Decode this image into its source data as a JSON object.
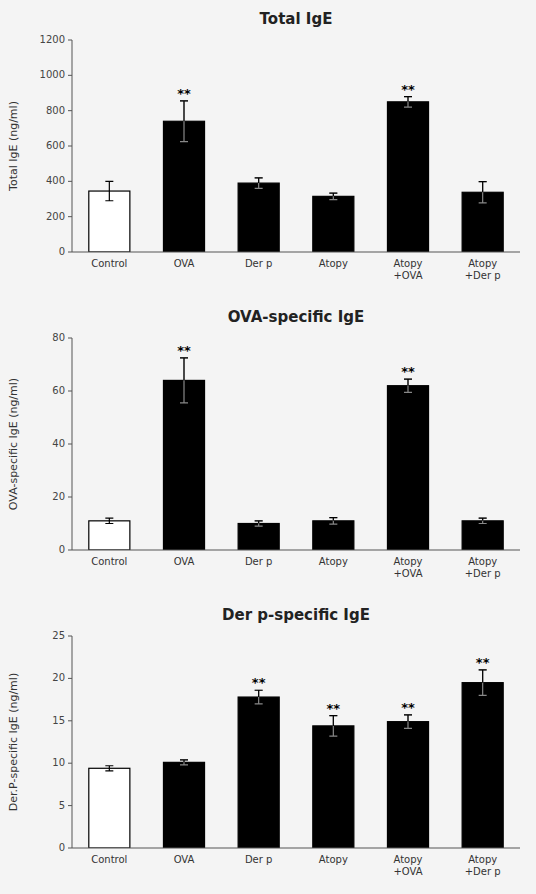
{
  "chart_data": [
    {
      "type": "bar",
      "title": "Total IgE",
      "ylabel": "Total IgE (ng/ml)",
      "categories": [
        "Control",
        "OVA",
        "Der p",
        "Atopy",
        "Atopy\n+OVA",
        "Atopy\n+Der p"
      ],
      "values": [
        345,
        740,
        390,
        315,
        850,
        338
      ],
      "errors": [
        55,
        115,
        30,
        18,
        30,
        60
      ],
      "colors": [
        "white",
        "black",
        "black",
        "black",
        "black",
        "black"
      ],
      "annotations": [
        {
          "category": "OVA",
          "text": "**"
        },
        {
          "category": "Atopy\n+OVA",
          "text": "**"
        }
      ],
      "ylim": [
        0,
        1200
      ],
      "yticks": [
        0,
        200,
        400,
        600,
        800,
        1000,
        1200
      ],
      "grid": false
    },
    {
      "type": "bar",
      "title": "OVA-specific IgE",
      "ylabel": "OVA-specific IgE (ng/ml)",
      "categories": [
        "Control",
        "OVA",
        "Der p",
        "Atopy",
        "Atopy\n+OVA",
        "Atopy\n+Der p"
      ],
      "values": [
        11,
        64,
        10,
        11,
        62,
        11
      ],
      "errors": [
        1.0,
        8.5,
        1.0,
        1.2,
        2.5,
        1.0
      ],
      "colors": [
        "white",
        "black",
        "black",
        "black",
        "black",
        "black"
      ],
      "annotations": [
        {
          "category": "OVA",
          "text": "**"
        },
        {
          "category": "Atopy\n+OVA",
          "text": "**"
        }
      ],
      "ylim": [
        0,
        80
      ],
      "yticks": [
        0,
        20,
        40,
        60,
        80
      ],
      "grid": false
    },
    {
      "type": "bar",
      "title": "Der p-specific IgE",
      "ylabel": "Der.P-specific IgE (ng/ml)",
      "categories": [
        "Control",
        "OVA",
        "Der p",
        "Atopy",
        "Atopy\n+OVA",
        "Atopy\n+Der p"
      ],
      "values": [
        9.4,
        10.1,
        17.8,
        14.4,
        14.9,
        19.5
      ],
      "errors": [
        0.3,
        0.3,
        0.8,
        1.2,
        0.8,
        1.5
      ],
      "colors": [
        "white",
        "black",
        "black",
        "black",
        "black",
        "black"
      ],
      "annotations": [
        {
          "category": "Der p",
          "text": "**"
        },
        {
          "category": "Atopy",
          "text": "**"
        },
        {
          "category": "Atopy\n+OVA",
          "text": "**"
        },
        {
          "category": "Atopy\n+Der p",
          "text": "**"
        }
      ],
      "ylim": [
        0,
        25
      ],
      "yticks": [
        0,
        5,
        10,
        15,
        20,
        25
      ],
      "grid": false
    }
  ]
}
